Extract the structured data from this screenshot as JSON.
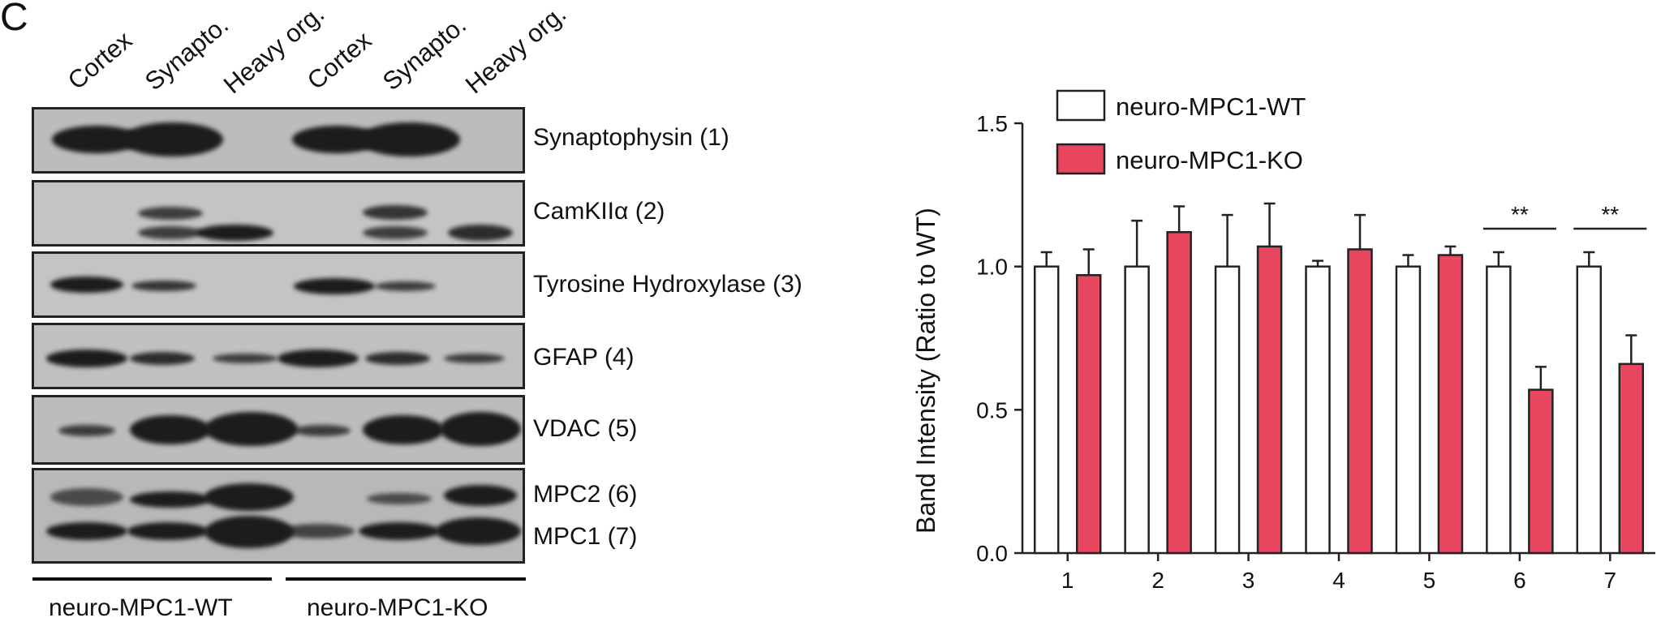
{
  "panel_letter": "C",
  "western_blot": {
    "lanes": [
      "Cortex",
      "Synapto.",
      "Heavy org.",
      "Cortex",
      "Synapto.",
      "Heavy org."
    ],
    "proteins": [
      "Synaptophysin (1)",
      "CamKIIα (2)",
      "Tyrosine Hydroxylase (3)",
      "GFAP (4)",
      "VDAC (5)",
      "MPC2 (6)",
      "MPC1 (7)"
    ],
    "groups": [
      "neuro-MPC1-WT",
      "neuro-MPC1-KO"
    ]
  },
  "chart_data": {
    "type": "bar",
    "title": "",
    "xlabel": "",
    "ylabel": "Band Intensity (Ratio to WT)",
    "ylim": [
      0,
      1.5
    ],
    "yticks": [
      "0.0",
      "0.5",
      "1.0",
      "1.5"
    ],
    "categories": [
      "1",
      "2",
      "3",
      "4",
      "5",
      "6",
      "7"
    ],
    "series": [
      {
        "name": "neuro-MPC1-WT",
        "color": "#ffffff",
        "values": [
          1.0,
          1.0,
          1.0,
          1.0,
          1.0,
          1.0,
          1.0
        ],
        "errors": [
          0.05,
          0.16,
          0.18,
          0.02,
          0.04,
          0.05,
          0.05
        ]
      },
      {
        "name": "neuro-MPC1-KO",
        "color": "#e8475f",
        "values": [
          0.97,
          1.12,
          1.07,
          1.06,
          1.04,
          0.57,
          0.66
        ],
        "errors": [
          0.09,
          0.09,
          0.15,
          0.12,
          0.03,
          0.08,
          0.1
        ]
      }
    ],
    "significance": [
      {
        "category": "6",
        "label": "**"
      },
      {
        "category": "7",
        "label": "**"
      }
    ],
    "legend_position": "top-left"
  }
}
